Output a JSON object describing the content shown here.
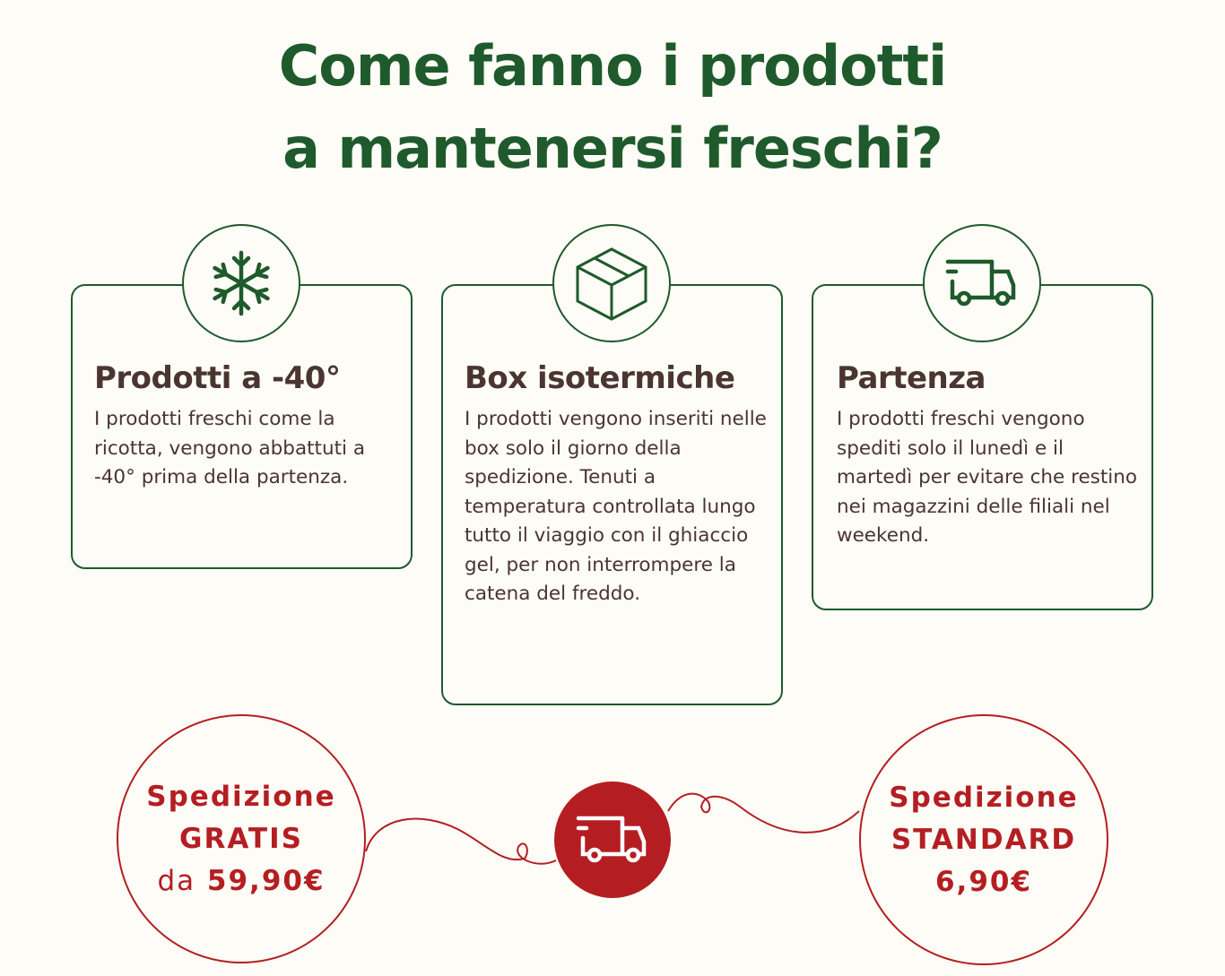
{
  "title": {
    "line1": "Come fanno i prodotti",
    "line2": "a mantenersi freschi?"
  },
  "colors": {
    "green": "#1f5a2c",
    "red": "#b41e22",
    "text": "#4a3530",
    "background": "#fefcf6"
  },
  "cards": [
    {
      "icon": "snowflake-icon",
      "heading": "Prodotti a -40°",
      "body": "I prodotti freschi come la ricotta, vengono abbattuti a -40° prima della partenza."
    },
    {
      "icon": "box-icon",
      "heading": "Box isotermiche",
      "body": "I prodotti vengono inseriti nelle box solo il giorno della spedizione. Tenuti a temperatura controllata lungo tutto il viaggio con il ghiaccio gel, per non interrompere la catena del freddo."
    },
    {
      "icon": "truck-icon",
      "heading": "Partenza",
      "body": "I prodotti freschi vengono spediti solo il lunedì e il martedì per evitare che restino nei magazzini delle filiali nel weekend."
    }
  ],
  "shipping": {
    "free": {
      "line1": "Spedizione",
      "line2": "GRATIS",
      "prefix": "da",
      "price": "59,90€"
    },
    "standard": {
      "line1": "Spedizione",
      "line2": "STANDARD",
      "price": "6,90€"
    },
    "icon": "truck-icon"
  }
}
